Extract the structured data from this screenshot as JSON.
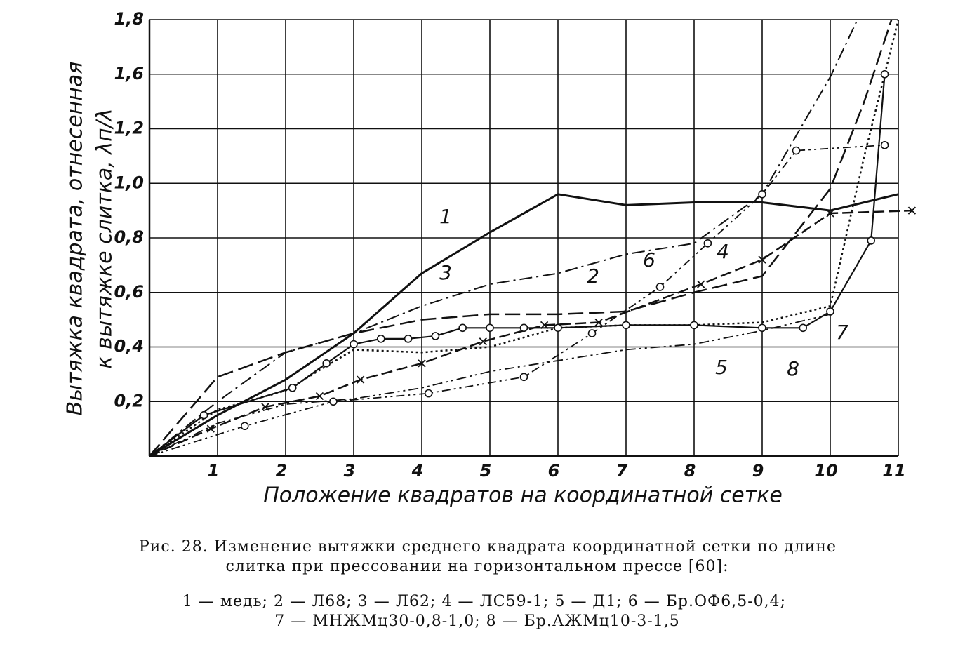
{
  "chart_data": {
    "type": "line",
    "y_label_lines": [
      "Вытяжка квадрата, отнесенная",
      "к вытяжке слитка, λп/λ"
    ],
    "x_label": "Положение квадратов на координатной сетке",
    "caption_lines": [
      "Рис. 28. Изменение вытяжки среднего квадрата координатной сетки по длине",
      "слитка при прессовании на горизонтальном прессе [60]:"
    ],
    "legend_lines": [
      "1 — медь; 2 — Л68; 3 — Л62; 4 — ЛС59-1; 5 — Д1; 6 — Бр.ОФ6,5-0,4;",
      "7 — МНЖМц30-0,8-1,0; 8 — Бр.АЖМц10-3-1,5"
    ],
    "xlim": [
      0,
      11
    ],
    "xticks": [
      1,
      2,
      3,
      4,
      5,
      6,
      7,
      8,
      9,
      10,
      11
    ],
    "ylim": [
      0,
      1.8
    ],
    "yticks": [
      {
        "value": 0.2,
        "label": "0,2"
      },
      {
        "value": 0.4,
        "label": "0,4"
      },
      {
        "value": 0.6,
        "label": "0,6"
      },
      {
        "value": 0.8,
        "label": "0,8"
      },
      {
        "value": 1.0,
        "label": "1,0"
      },
      {
        "value": 1.2,
        "label": "1,2"
      },
      {
        "value": 1.6,
        "label": "1,6"
      },
      {
        "value": 1.8,
        "label": "1,8"
      }
    ],
    "grid": true,
    "series": [
      {
        "name": "1",
        "color": "#111",
        "dash": "none",
        "width": 3,
        "marker": "none",
        "x": [
          0,
          1,
          2,
          3,
          4,
          5,
          6,
          7,
          8,
          9,
          10,
          11
        ],
        "values": [
          0,
          0.15,
          0.28,
          0.45,
          0.67,
          0.82,
          0.96,
          0.92,
          0.93,
          0.93,
          0.9,
          0.96
        ]
      },
      {
        "name": "2",
        "color": "#111",
        "dash": "22 8",
        "width": 2.5,
        "marker": "none",
        "x": [
          0,
          1,
          2,
          3,
          4,
          5,
          6,
          7,
          8,
          9,
          10,
          10.5,
          10.9
        ],
        "values": [
          0,
          0.29,
          0.38,
          0.45,
          0.5,
          0.52,
          0.52,
          0.53,
          0.6,
          0.66,
          0.98,
          1.4,
          1.8
        ]
      },
      {
        "name": "3",
        "color": "#111",
        "dash": "18 6 3 6",
        "width": 2,
        "marker": "none",
        "x": [
          0,
          1,
          2,
          3,
          4,
          5,
          6,
          7,
          8,
          9,
          10,
          10.4
        ],
        "values": [
          0,
          0.2,
          0.38,
          0.45,
          0.55,
          0.63,
          0.67,
          0.74,
          0.78,
          0.96,
          1.58,
          1.8
        ]
      },
      {
        "name": "4",
        "color": "#111",
        "dash": "16 6",
        "width": 2.5,
        "marker": "cross",
        "x": [
          0,
          0.9,
          1.7,
          2.5,
          3.1,
          4,
          4.9,
          5.8,
          6.6,
          8.1,
          9,
          10,
          11.2
        ],
        "values": [
          0,
          0.1,
          0.18,
          0.22,
          0.28,
          0.34,
          0.42,
          0.48,
          0.49,
          0.63,
          0.72,
          0.89,
          0.9
        ]
      },
      {
        "name": "5",
        "color": "#111",
        "dash": "14 5 3 5 3 5",
        "width": 1.8,
        "marker": "none",
        "x": [
          0,
          1,
          2,
          3,
          4,
          5,
          6,
          7,
          8,
          9,
          10
        ],
        "values": [
          0,
          0.12,
          0.19,
          0.21,
          0.25,
          0.31,
          0.35,
          0.39,
          0.41,
          0.46,
          0.52
        ]
      },
      {
        "name": "6",
        "color": "#111",
        "dash": "12 5 3 5 3 5",
        "width": 1.8,
        "marker": "circle",
        "x": [
          0,
          1.4,
          2.7,
          4.1,
          5.5,
          6.5,
          7.5,
          8.2,
          9,
          9.5,
          10.8
        ],
        "values": [
          0,
          0.11,
          0.2,
          0.23,
          0.29,
          0.45,
          0.62,
          0.78,
          0.96,
          1.12,
          1.14
        ]
      },
      {
        "name": "7",
        "color": "#111",
        "dash": "3 4",
        "width": 2.5,
        "marker": "none",
        "x": [
          0,
          1,
          2,
          3,
          4,
          5,
          6,
          7,
          8,
          9,
          10,
          10.5,
          11
        ],
        "values": [
          0,
          0.17,
          0.24,
          0.39,
          0.38,
          0.4,
          0.47,
          0.48,
          0.48,
          0.49,
          0.55,
          1.1,
          1.8
        ]
      },
      {
        "name": "8",
        "color": "#111",
        "dash": "none",
        "width": 2.2,
        "marker": "circle",
        "x": [
          0,
          0.8,
          2.1,
          2.6,
          3,
          3.4,
          3.8,
          4.2,
          4.6,
          5,
          5.5,
          6,
          7,
          8,
          9,
          9.6,
          10,
          10.6,
          10.8
        ],
        "values": [
          0,
          0.15,
          0.25,
          0.34,
          0.41,
          0.43,
          0.43,
          0.44,
          0.47,
          0.47,
          0.47,
          0.47,
          0.48,
          0.48,
          0.47,
          0.47,
          0.53,
          0.79,
          1.6
        ]
      }
    ]
  }
}
